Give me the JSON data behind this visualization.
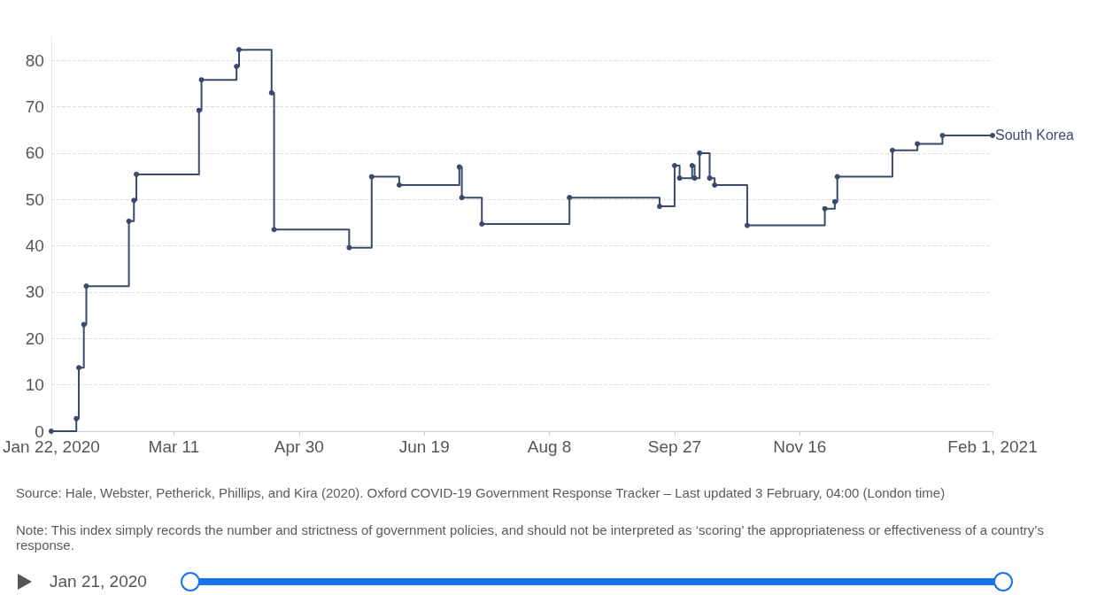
{
  "chart_data": {
    "type": "step",
    "x": [
      "2020-01-22",
      "2020-02-01",
      "2020-02-02",
      "2020-02-04",
      "2020-02-05",
      "2020-02-22",
      "2020-02-24",
      "2020-02-25",
      "2020-03-21",
      "2020-03-22",
      "2020-04-05",
      "2020-04-06",
      "2020-04-19",
      "2020-04-20",
      "2020-05-20",
      "2020-05-29",
      "2020-06-09",
      "2020-07-03",
      "2020-07-04",
      "2020-07-12",
      "2020-08-16",
      "2020-09-21",
      "2020-09-27",
      "2020-09-29",
      "2020-10-04",
      "2020-10-05",
      "2020-10-07",
      "2020-10-11",
      "2020-10-13",
      "2020-10-26",
      "2020-11-26",
      "2020-11-30",
      "2020-12-01",
      "2020-12-23",
      "2021-01-02",
      "2021-01-12",
      "2021-02-01"
    ],
    "series": [
      {
        "name": "South Korea",
        "color": "#3b4a6b",
        "values": [
          0,
          2.7,
          13.7,
          23,
          31.3,
          45.3,
          49.8,
          55.4,
          69.2,
          75.8,
          78.7,
          82.3,
          73,
          43.5,
          39.6,
          54.9,
          53.1,
          57,
          50.4,
          44.7,
          50.4,
          48.5,
          57.3,
          54.6,
          57.3,
          54.6,
          60,
          54.6,
          53.1,
          44.4,
          48,
          49.5,
          54.9,
          60.6,
          62,
          63.8,
          63.8
        ]
      }
    ],
    "xlim": [
      "2020-01-22",
      "2021-02-01"
    ],
    "xticks": [
      {
        "value": "2020-01-22",
        "label": "Jan 22, 2020"
      },
      {
        "value": "2020-03-11",
        "label": "Mar 11"
      },
      {
        "value": "2020-04-30",
        "label": "Apr 30"
      },
      {
        "value": "2020-06-19",
        "label": "Jun 19"
      },
      {
        "value": "2020-08-08",
        "label": "Aug 8"
      },
      {
        "value": "2020-09-27",
        "label": "Sep 27"
      },
      {
        "value": "2020-11-16",
        "label": "Nov 16"
      },
      {
        "value": "2021-02-01",
        "label": "Feb 1, 2021"
      }
    ],
    "ylim": [
      0,
      85
    ],
    "yticks": [
      0,
      10,
      20,
      30,
      40,
      50,
      60,
      70,
      80
    ],
    "grid": "y",
    "marker": "circle",
    "line_style": "solid",
    "legend": false,
    "annotations": [
      "Source: Hale, Webster, Petherick, Phillips, and Kira (2020). Oxford COVID-19 Government Response Tracker – Last updated 3 February, 04:00 (London time)",
      "Note: This index simply records the number and strictness of government policies, and should not be interpreted as ‘scoring’ the appropriateness or effectiveness of a country’s response.",
      "Jan 21, 2020"
    ]
  }
}
